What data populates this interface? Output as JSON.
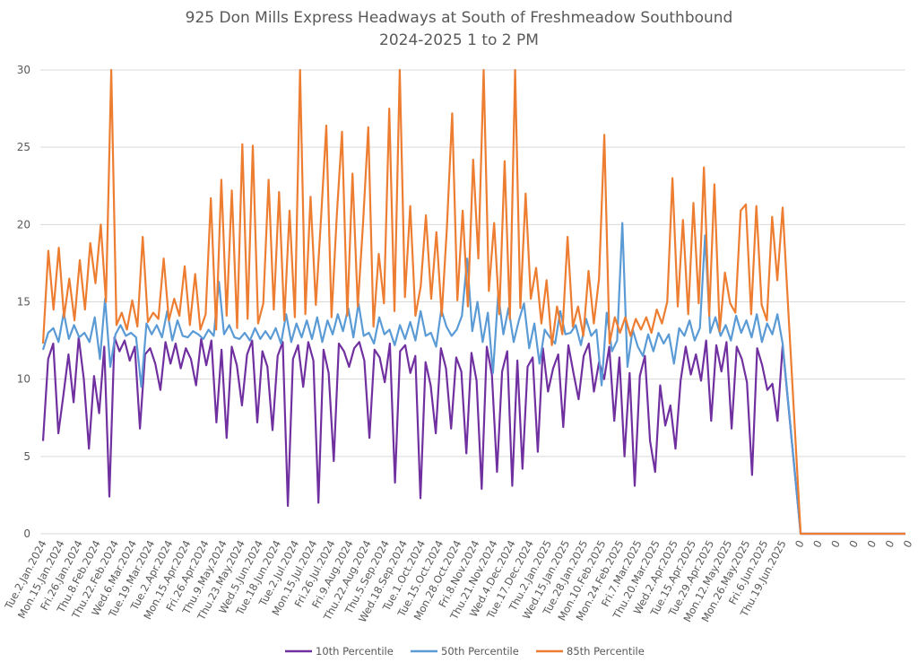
{
  "chart_data": {
    "type": "line",
    "title": "925 Don Mills Express Headways at South of Freshmeadow Southbound",
    "subtitle": "2024-2025 1 to 2 PM",
    "xlabel": "",
    "ylabel": "",
    "ylim": [
      0,
      30
    ],
    "yticks": [
      0,
      5,
      10,
      15,
      20,
      25,
      30
    ],
    "grid": true,
    "legend_position": "bottom",
    "x_tick_labels": [
      "Tue.2.Jan.2024",
      "Mon.15.Jan.2024",
      "Fri.26.Jan.2024",
      "Thu.8.Feb.2024",
      "Thu.22.Feb.2024",
      "Wed.6.Mar.2024",
      "Tue.19.Mar.2024",
      "Tue.2.Apr.2024",
      "Mon.15.Apr.2024",
      "Fri.26.Apr.2024",
      "Thu.9.May.2024",
      "Thu.23.May.2024",
      "Wed.5.Jun.2024",
      "Tue.18.Jun.2024",
      "Tue.2.Jul.2024",
      "Mon.15.Jul.2024",
      "Fri.26.Jul.2024",
      "Fri.9.Aug.2024",
      "Thu.22.Aug.2024",
      "Thu.5.Sep.2024",
      "Wed.18.Sep.2024",
      "Tue.1.Oct.2024",
      "Tue.15.Oct.2024",
      "Mon.28.Oct.2024",
      "Fri.8.Nov.2024",
      "Thu.21.Nov.2024",
      "Wed.4.Dec.2024",
      "Tue.17.Dec.2024",
      "Thu.2.Jan.2025",
      "Wed.15.Jan.2025",
      "Tue.28.Jan.2025",
      "Mon.10.Feb.2025",
      "Mon.24.Feb.2025",
      "Fri.7.Mar.2025",
      "Thu.20.Mar.2025",
      "Wed.2.Apr.2025",
      "Tue.15.Apr.2025",
      "Tue.29.Apr.2025",
      "Mon.12.May.2025",
      "Mon.26.May.2025",
      "Fri.6.Jun.2025",
      "Thu.19.Jun.2025",
      "0",
      "0",
      "0",
      "0",
      "0",
      "0",
      "0"
    ],
    "points_per_label": 3,
    "series": [
      {
        "name": "10th Percentile",
        "color": "#7030A0",
        "values": [
          6.0,
          11.3,
          12.3,
          6.5,
          9.0,
          11.6,
          8.5,
          12.7,
          10.0,
          5.5,
          10.2,
          7.8,
          12.1,
          2.4,
          12.7,
          11.8,
          12.5,
          11.2,
          12.1,
          6.8,
          11.6,
          12.0,
          11.0,
          9.3,
          12.4,
          11.0,
          12.3,
          10.7,
          12.0,
          11.3,
          9.6,
          12.6,
          10.9,
          12.5,
          7.2,
          11.9,
          6.2,
          12.1,
          10.9,
          8.3,
          11.6,
          12.5,
          7.2,
          11.8,
          10.8,
          6.7,
          11.5,
          12.4,
          1.8,
          11.3,
          12.2,
          9.5,
          12.4,
          11.2,
          2.0,
          11.9,
          10.4,
          4.7,
          12.3,
          11.8,
          10.8,
          12.0,
          12.4,
          11.2,
          6.2,
          11.9,
          11.4,
          9.8,
          12.3,
          3.3,
          11.8,
          12.2,
          10.4,
          11.5,
          2.3,
          11.1,
          9.6,
          6.5,
          12.0,
          10.7,
          6.8,
          11.4,
          10.5,
          5.2,
          11.7,
          9.9,
          2.9,
          12.1,
          10.3,
          4.0,
          10.5,
          11.8,
          3.1,
          11.2,
          4.2,
          10.8,
          11.4,
          5.3,
          12.0,
          9.2,
          10.7,
          11.6,
          6.9,
          12.2,
          10.4,
          8.7,
          11.5,
          12.3,
          9.2,
          11.1,
          10.0,
          12.1,
          7.3,
          11.4,
          5.0,
          10.4,
          3.1,
          10.2,
          11.5,
          6.0,
          4.0,
          9.6,
          7.0,
          8.3,
          5.5,
          9.9,
          12.1,
          10.3,
          11.6,
          9.9,
          12.5,
          7.3,
          12.2,
          10.5,
          12.4,
          6.8,
          12.1,
          11.3,
          9.8,
          3.8,
          12.0,
          10.9,
          9.3,
          9.7,
          7.3,
          12.2,
          0,
          0,
          0,
          0,
          0,
          0,
          0
        ]
      },
      {
        "name": "50th Percentile",
        "color": "#5B9BD5",
        "values": [
          11.9,
          13.0,
          13.3,
          12.4,
          14.3,
          12.6,
          13.5,
          12.7,
          13.0,
          12.4,
          14.0,
          11.3,
          15.2,
          10.8,
          12.9,
          13.5,
          12.8,
          13.0,
          12.7,
          9.5,
          13.6,
          12.9,
          13.5,
          12.7,
          14.4,
          12.5,
          13.8,
          12.8,
          12.7,
          13.1,
          12.9,
          12.6,
          13.2,
          12.8,
          16.3,
          12.9,
          13.5,
          12.7,
          12.6,
          13.0,
          12.5,
          13.3,
          12.6,
          13.1,
          12.6,
          13.3,
          12.3,
          14.2,
          12.4,
          13.6,
          12.7,
          13.8,
          12.6,
          14.0,
          12.4,
          13.8,
          12.9,
          14.2,
          13.1,
          14.6,
          12.7,
          14.9,
          12.8,
          13.0,
          12.3,
          14.0,
          12.9,
          13.2,
          12.2,
          13.5,
          12.6,
          13.7,
          12.5,
          14.4,
          12.8,
          13.0,
          12.1,
          14.5,
          13.4,
          12.8,
          13.2,
          14.1,
          17.8,
          13.1,
          15.0,
          12.4,
          14.3,
          10.4,
          15.5,
          12.9,
          14.6,
          12.4,
          13.8,
          14.9,
          12.0,
          13.6,
          11.0,
          13.2,
          12.7,
          12.3,
          14.4,
          12.9,
          13.0,
          13.5,
          12.2,
          13.9,
          12.8,
          13.2,
          9.6,
          14.3,
          11.8,
          12.5,
          20.1,
          10.8,
          13.2,
          12.1,
          11.5,
          12.9,
          11.8,
          13.0,
          12.3,
          12.9,
          11.0,
          13.3,
          12.8,
          13.8,
          12.5,
          13.3,
          19.3,
          13.0,
          14.0,
          12.8,
          13.5,
          12.5,
          14.1,
          13.0,
          13.8,
          12.7,
          14.2,
          12.4,
          13.6,
          12.9,
          14.2,
          12.3,
          0,
          0,
          0,
          0,
          0,
          0,
          0
        ]
      },
      {
        "name": "85th Percentile",
        "color": "#ED7D31",
        "values": [
          12.3,
          18.3,
          14.5,
          18.5,
          14.0,
          16.5,
          13.8,
          17.7,
          14.5,
          18.8,
          16.2,
          20.0,
          15.0,
          30.0,
          13.5,
          14.3,
          13.2,
          15.1,
          13.4,
          19.2,
          13.7,
          14.3,
          13.9,
          17.8,
          13.8,
          15.2,
          14.1,
          17.3,
          13.5,
          16.8,
          13.2,
          14.2,
          21.7,
          13.2,
          22.9,
          14.1,
          22.2,
          13.3,
          25.2,
          13.9,
          25.1,
          13.6,
          14.9,
          22.9,
          14.5,
          22.1,
          13.8,
          20.9,
          14.0,
          30.0,
          14.2,
          21.8,
          14.8,
          20.4,
          26.4,
          14.0,
          20.6,
          26.0,
          14.1,
          23.3,
          14.7,
          20.0,
          26.3,
          13.4,
          18.1,
          14.9,
          27.5,
          14.4,
          30.0,
          15.3,
          21.2,
          14.1,
          16.0,
          20.6,
          15.2,
          19.5,
          14.1,
          19.8,
          27.2,
          15.1,
          20.9,
          14.7,
          24.2,
          17.8,
          30.0,
          15.7,
          20.1,
          14.2,
          24.1,
          13.9,
          30.0,
          14.6,
          22.0,
          15.2,
          17.2,
          13.6,
          16.4,
          12.2,
          14.7,
          12.9,
          19.2,
          13.4,
          14.7,
          12.8,
          17.0,
          13.6,
          16.5,
          25.8,
          12.3,
          14.0,
          13.0,
          14.0,
          12.8,
          13.9,
          13.2,
          14.0,
          13.0,
          14.5,
          13.6,
          15.0,
          23.0,
          14.7,
          20.3,
          14.2,
          21.4,
          14.9,
          23.7,
          14.1,
          22.6,
          13.1,
          16.9,
          14.9,
          14.3,
          20.9,
          21.3,
          14.2,
          21.2,
          14.8,
          13.8,
          20.5,
          16.4,
          21.1,
          0,
          0,
          0,
          0,
          0,
          0,
          0
        ]
      }
    ]
  }
}
